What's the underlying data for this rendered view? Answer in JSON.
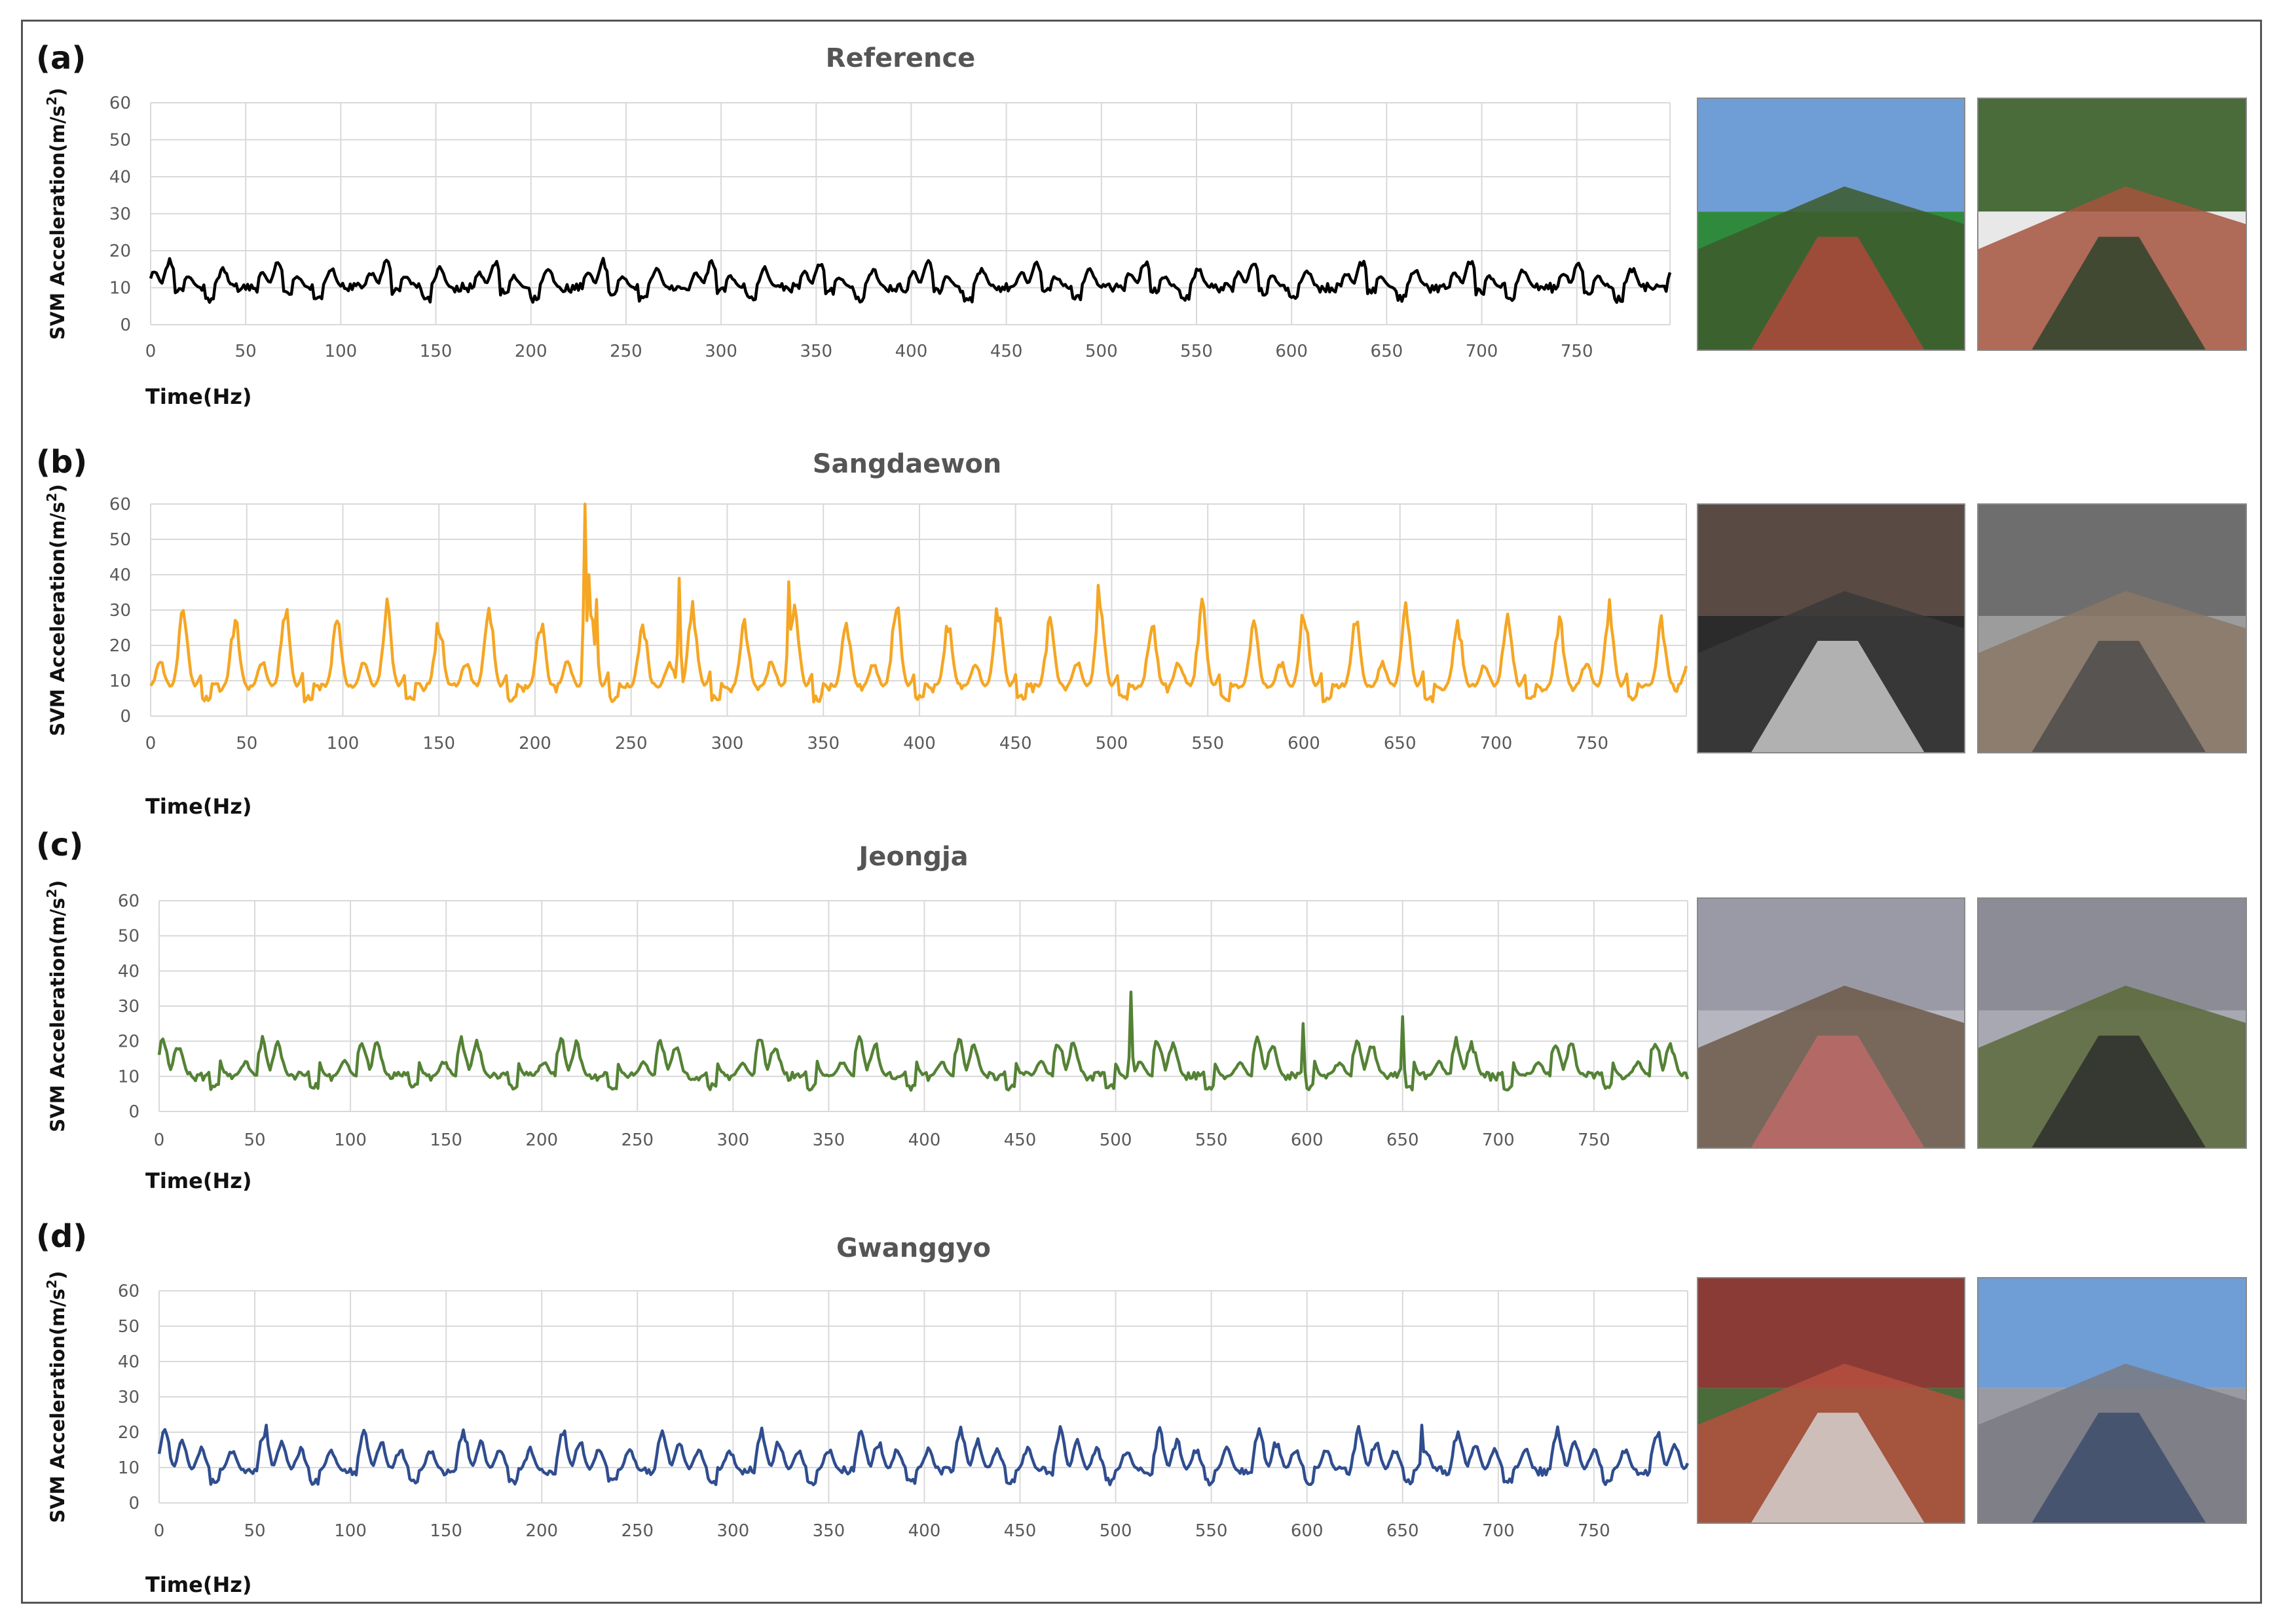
{
  "chart_data": [
    {
      "type": "line",
      "panel": "(a)",
      "title": "Reference",
      "xlabel": "Time(Hz)",
      "ylabel": "SVM Acceleration(m/s²)",
      "ylabel_base": "SVM Acceleration(m/s",
      "ylabel_sup": "2",
      "ylabel_close": ")",
      "xlim": [
        0,
        799
      ],
      "ylim": [
        0,
        60
      ],
      "x_ticks": [
        0,
        50,
        100,
        150,
        200,
        250,
        300,
        350,
        400,
        450,
        500,
        550,
        600,
        650,
        700,
        750
      ],
      "y_ticks": [
        0,
        10,
        20,
        30,
        40,
        50,
        60
      ],
      "grid": true,
      "color": "#000000",
      "series": [
        {
          "period": 57,
          "baseline": 10,
          "peaks": [
            [
              2,
              14
            ],
            [
              10,
              17
            ],
            [
              20,
              13
            ],
            [
              38,
              15
            ]
          ],
          "noise_peak": [
            15,
            8
          ]
        }
      ]
    },
    {
      "type": "line",
      "panel": "(b)",
      "title": "Sangdaewon",
      "xlabel": "Time(Hz)",
      "ylabel": "SVM Acceleration(m/s²)",
      "ylabel_base": "SVM Acceleration(m/s",
      "ylabel_sup": "2",
      "ylabel_close": ")",
      "xlim": [
        0,
        799
      ],
      "ylim": [
        0,
        60
      ],
      "x_ticks": [
        0,
        50,
        100,
        150,
        200,
        250,
        300,
        350,
        400,
        450,
        500,
        550,
        600,
        650,
        700,
        750
      ],
      "y_ticks": [
        0,
        10,
        20,
        30,
        40,
        50,
        60
      ],
      "grid": true,
      "color": "#f5a623",
      "series": [
        {
          "period": 53,
          "baseline": 8,
          "peaks": [
            [
              5,
              15
            ],
            [
              17,
              30
            ],
            [
              28,
              14
            ],
            [
              44,
              26
            ]
          ],
          "spikes": [
            [
              226,
              60
            ],
            [
              228,
              40
            ],
            [
              232,
              33
            ],
            [
              275,
              39
            ],
            [
              332,
              38
            ],
            [
              493,
              37
            ]
          ]
        }
      ]
    },
    {
      "type": "line",
      "panel": "(c)",
      "title": "Jeongja",
      "xlabel": "Time(Hz)",
      "ylabel": "SVM Acceleration(m/s²)",
      "ylabel_base": "SVM Acceleration(m/s",
      "ylabel_sup": "2",
      "ylabel_close": ")",
      "xlim": [
        0,
        799
      ],
      "ylim": [
        0,
        60
      ],
      "x_ticks": [
        0,
        50,
        100,
        150,
        200,
        250,
        300,
        350,
        400,
        450,
        500,
        550,
        600,
        650,
        700,
        750
      ],
      "y_ticks": [
        0,
        10,
        20,
        30,
        40,
        50,
        60
      ],
      "grid": true,
      "color": "#548235",
      "series": [
        {
          "period": 52,
          "baseline": 10,
          "peaks": [
            [
              2,
              20
            ],
            [
              10,
              19
            ],
            [
              30,
              16
            ],
            [
              45,
              14
            ]
          ],
          "spikes": [
            [
              508,
              34
            ],
            [
              598,
              25
            ],
            [
              650,
              27
            ]
          ]
        }
      ]
    },
    {
      "type": "line",
      "panel": "(d)",
      "title": "Gwanggyo",
      "xlabel": "Time(Hz)",
      "ylabel": "SVM Acceleration(m/s²)",
      "ylabel_base": "SVM Acceleration(m/s",
      "ylabel_sup": "2",
      "ylabel_close": ")",
      "xlim": [
        0,
        799
      ],
      "ylim": [
        0,
        60
      ],
      "x_ticks": [
        0,
        50,
        100,
        150,
        200,
        250,
        300,
        350,
        400,
        450,
        500,
        550,
        600,
        650,
        700,
        750
      ],
      "y_ticks": [
        0,
        10,
        20,
        30,
        40,
        50,
        60
      ],
      "grid": true,
      "color": "#2f4d8f",
      "series": [
        {
          "period": 52,
          "baseline": 9,
          "peaks": [
            [
              3,
              20
            ],
            [
              12,
              17
            ],
            [
              22,
              15
            ],
            [
              38,
              15
            ]
          ],
          "spikes": [
            [
              56,
              22
            ],
            [
              660,
              22
            ]
          ]
        }
      ]
    }
  ],
  "photos": [
    {
      "name": "reference-stadium-photo",
      "colors": [
        "#6f9ed6",
        "#3d5a2c",
        "#b5473c",
        "#2f8a3d"
      ]
    },
    {
      "name": "reference-aerial-photo",
      "colors": [
        "#4a6b3a",
        "#a5533e",
        "#27412a",
        "#e8e8e8"
      ]
    },
    {
      "name": "sangdaewon-alley-photo",
      "colors": [
        "#5a4a44",
        "#3a3a3a",
        "#cfcfcf",
        "#2b2b2b"
      ]
    },
    {
      "name": "sangdaewon-manhole-photo",
      "colors": [
        "#6e6e6e",
        "#8a7866",
        "#4a4a4a",
        "#9c9c9c"
      ]
    },
    {
      "name": "jeongja-sidewalk-photo",
      "colors": [
        "#9a9aa6",
        "#6d5a49",
        "#c26a6a",
        "#b6b6c0"
      ]
    },
    {
      "name": "jeongja-bollards-photo",
      "colors": [
        "#8c8c96",
        "#5a6a3a",
        "#2a2a2a",
        "#a8a8b2"
      ]
    },
    {
      "name": "gwanggyo-bikepath-photo",
      "colors": [
        "#8a3b35",
        "#b5503f",
        "#d8d8d8",
        "#4a6b3a"
      ]
    },
    {
      "name": "gwanggyo-plaza-photo",
      "colors": [
        "#6f9ed6",
        "#7a7a82",
        "#3a4a6a",
        "#9a9aa2"
      ]
    }
  ]
}
